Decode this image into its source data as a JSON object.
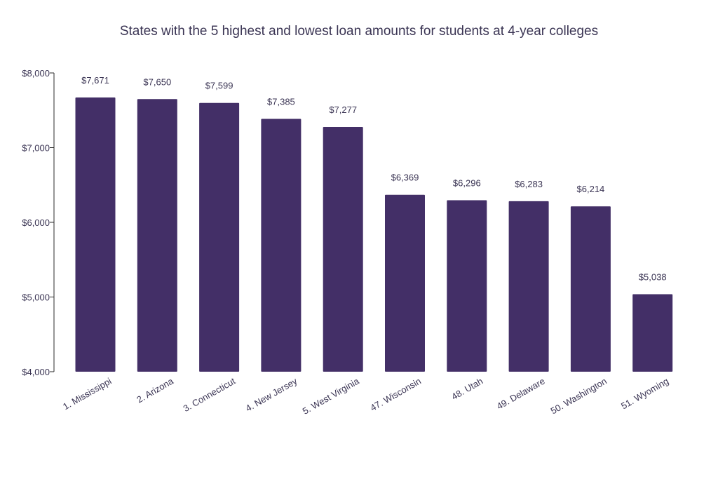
{
  "chart_data": {
    "type": "bar",
    "title": "States with the 5 highest and lowest loan amounts for students at 4-year colleges",
    "categories": [
      "1. Mississippi",
      "2. Arizona",
      "3. Connecticut",
      "4. New Jersey",
      "5. West Virginia",
      "47. Wisconsin",
      "48. Utah",
      "49. Delaware",
      "50. Washington",
      "51. Wyoming"
    ],
    "values": [
      7671,
      7650,
      7599,
      7385,
      7277,
      6369,
      6296,
      6283,
      6214,
      5038
    ],
    "value_labels": [
      "$7,671",
      "$7,650",
      "$7,599",
      "$7,385",
      "$7,277",
      "$6,369",
      "$6,296",
      "$6,283",
      "$6,214",
      "$5,038"
    ],
    "yticks": [
      4000,
      5000,
      6000,
      7000,
      8000
    ],
    "ytick_labels": [
      "$4,000",
      "$5,000",
      "$6,000",
      "$7,000",
      "$8,000"
    ],
    "ylim": [
      4000,
      8000
    ],
    "xlabel": "",
    "ylabel": "",
    "bar_color": "#432f67",
    "grid": false
  }
}
